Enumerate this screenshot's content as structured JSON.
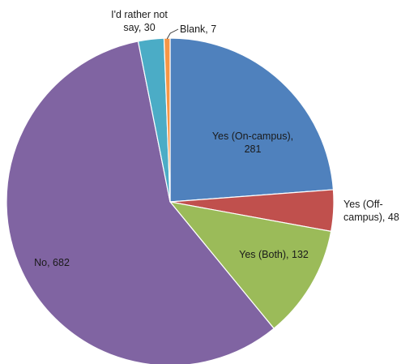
{
  "chart_data": {
    "type": "pie",
    "title": "",
    "start_angle_deg": 0,
    "direction": "clockwise",
    "slices": [
      {
        "label": "Yes (On-campus)",
        "value": 281,
        "color": "#4f81bd",
        "label_lines": [
          "Yes (On-campus),",
          "281"
        ]
      },
      {
        "label": "Yes (Off-campus)",
        "value": 48,
        "color": "#c0504d",
        "label_lines": [
          "Yes (Off-",
          "campus), 48"
        ]
      },
      {
        "label": "Yes (Both)",
        "value": 132,
        "color": "#9bbb59",
        "label_lines": [
          "Yes (Both), 132"
        ]
      },
      {
        "label": "No",
        "value": 682,
        "color": "#8064a2",
        "label_lines": [
          "No, 682"
        ]
      },
      {
        "label": "I'd rather not say",
        "value": 30,
        "color": "#4bacc6",
        "label_lines": [
          "I'd rather not",
          "say, 30"
        ]
      },
      {
        "label": "Blank",
        "value": 7,
        "color": "#f79646",
        "label_lines": [
          "Blank, 7"
        ]
      }
    ]
  }
}
